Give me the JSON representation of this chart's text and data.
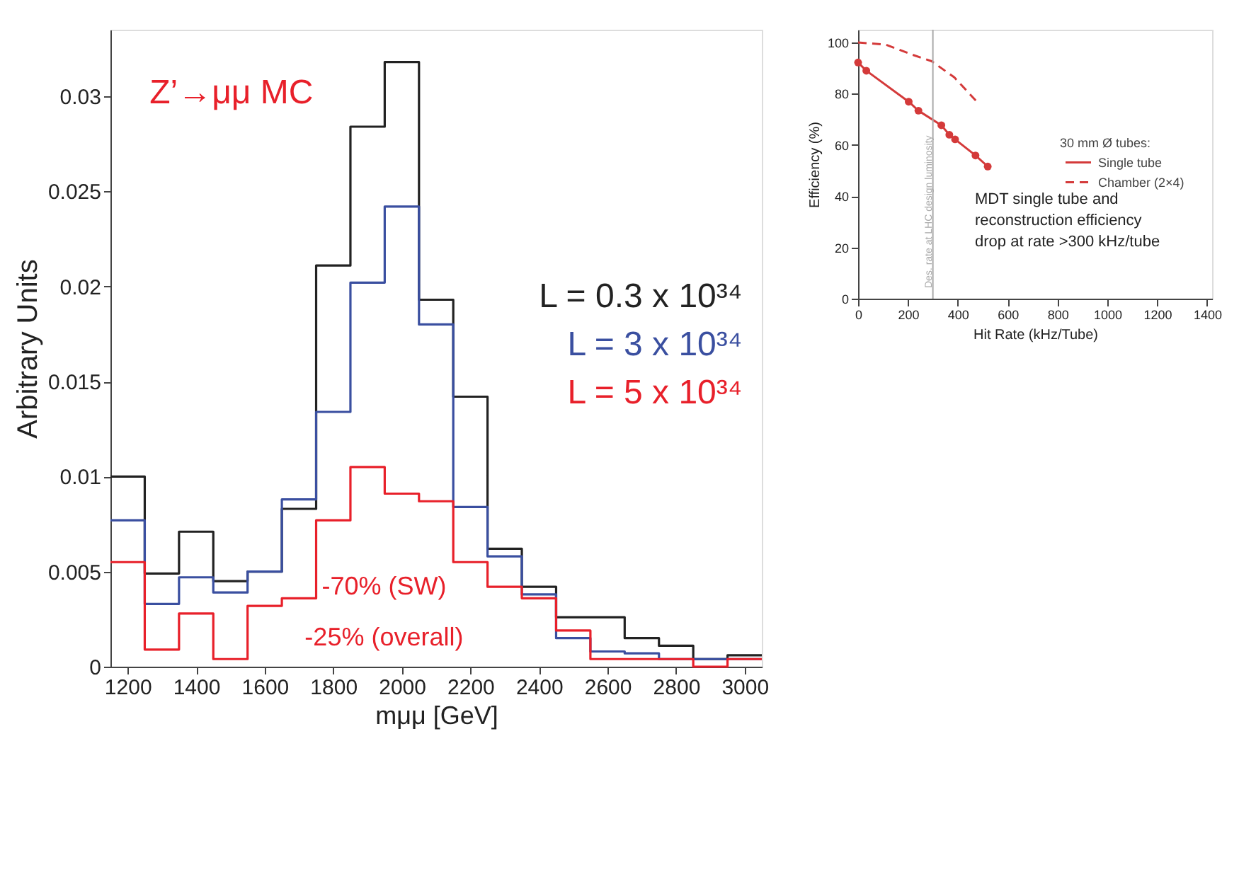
{
  "chart_data": [
    {
      "type": "histogram",
      "xlabel": "mμμ [GeV]",
      "ylabel": "Arbitrary Units",
      "bins": [
        1150,
        1250,
        1350,
        1450,
        1550,
        1650,
        1750,
        1850,
        1950,
        2050,
        2150,
        2250,
        2350,
        2450,
        2550,
        2650,
        2750,
        2850,
        2950,
        3050
      ],
      "series": [
        {
          "name": "L = 0.3 x 10³⁴",
          "color": "#222222",
          "values": [
            0.01,
            0.0049,
            0.0071,
            0.0045,
            0.005,
            0.0083,
            0.0211,
            0.0284,
            0.0318,
            0.0193,
            0.0142,
            0.0062,
            0.0042,
            0.0026,
            0.0026,
            0.0015,
            0.0011,
            0.0004,
            0.0006
          ]
        },
        {
          "name": "L =    3 x 10³⁴",
          "color": "#3a4fa0",
          "values": [
            0.0077,
            0.0033,
            0.0047,
            0.0039,
            0.005,
            0.0088,
            0.0134,
            0.0202,
            0.0242,
            0.018,
            0.0084,
            0.0058,
            0.0038,
            0.0015,
            0.0008,
            0.0007,
            0.0004,
            0.0004,
            0.0004
          ]
        },
        {
          "name": "L =    5 x 10³⁴",
          "color": "#e8202a",
          "values": [
            0.0055,
            0.0009,
            0.0028,
            0.0004,
            0.0032,
            0.0036,
            0.0077,
            0.0105,
            0.0091,
            0.0087,
            0.0055,
            0.0042,
            0.0036,
            0.0019,
            0.0004,
            0.0004,
            0.0004,
            0,
            0.0004
          ]
        }
      ],
      "xlim": [
        1150,
        3050
      ],
      "xticks": [
        1200,
        1400,
        1600,
        1800,
        2000,
        2200,
        2400,
        2600,
        2800,
        3000
      ],
      "ylim": [
        0,
        0.0335
      ],
      "yticks": [
        0,
        0.005,
        0.01,
        0.015,
        0.02,
        0.025,
        0.03
      ],
      "grid": false,
      "legend": "right",
      "annotations": [
        "Z’→μμ MC",
        "-70% (SW)",
        "-25% (overall)"
      ]
    },
    {
      "type": "line",
      "xlabel": "Hit Rate (kHz/Tube)",
      "ylabel": "Efficiency (%)",
      "legend_title": "30 mm Ø tubes:",
      "series": [
        {
          "name": "Single tube",
          "color": "#d43a3a",
          "marker": "circle",
          "line_style": "solid",
          "x": [
            0,
            33,
            203,
            242,
            334,
            366,
            389,
            471,
            520
          ],
          "values": [
            92.2,
            89,
            76.9,
            73.4,
            67.7,
            64,
            62.2,
            55.9,
            51.6
          ]
        },
        {
          "name": "Chamber (2×4)",
          "color": "#d43a3a",
          "marker": "none",
          "line_style": "dashed",
          "x": [
            0,
            111,
            216,
            295,
            386,
            484
          ],
          "values": [
            100,
            99.2,
            95.3,
            92.7,
            86.4,
            76.1
          ]
        }
      ],
      "xlim": [
        0,
        1420
      ],
      "xticks": [
        0,
        200,
        400,
        600,
        800,
        1000,
        1200,
        1400
      ],
      "ylim": [
        0,
        105
      ],
      "yticks": [
        0,
        20,
        40,
        60,
        80,
        100
      ],
      "grid": false,
      "legend": "right",
      "ref_lines": [
        {
          "axis": "x",
          "value": 300,
          "label": "Des. rate at LHC design luminosity",
          "color": "#aaaaaa"
        }
      ],
      "annotations": [
        "MDT single tube and\nreconstruction efficiency\ndrop at rate  >300 kHz/tube"
      ]
    }
  ]
}
